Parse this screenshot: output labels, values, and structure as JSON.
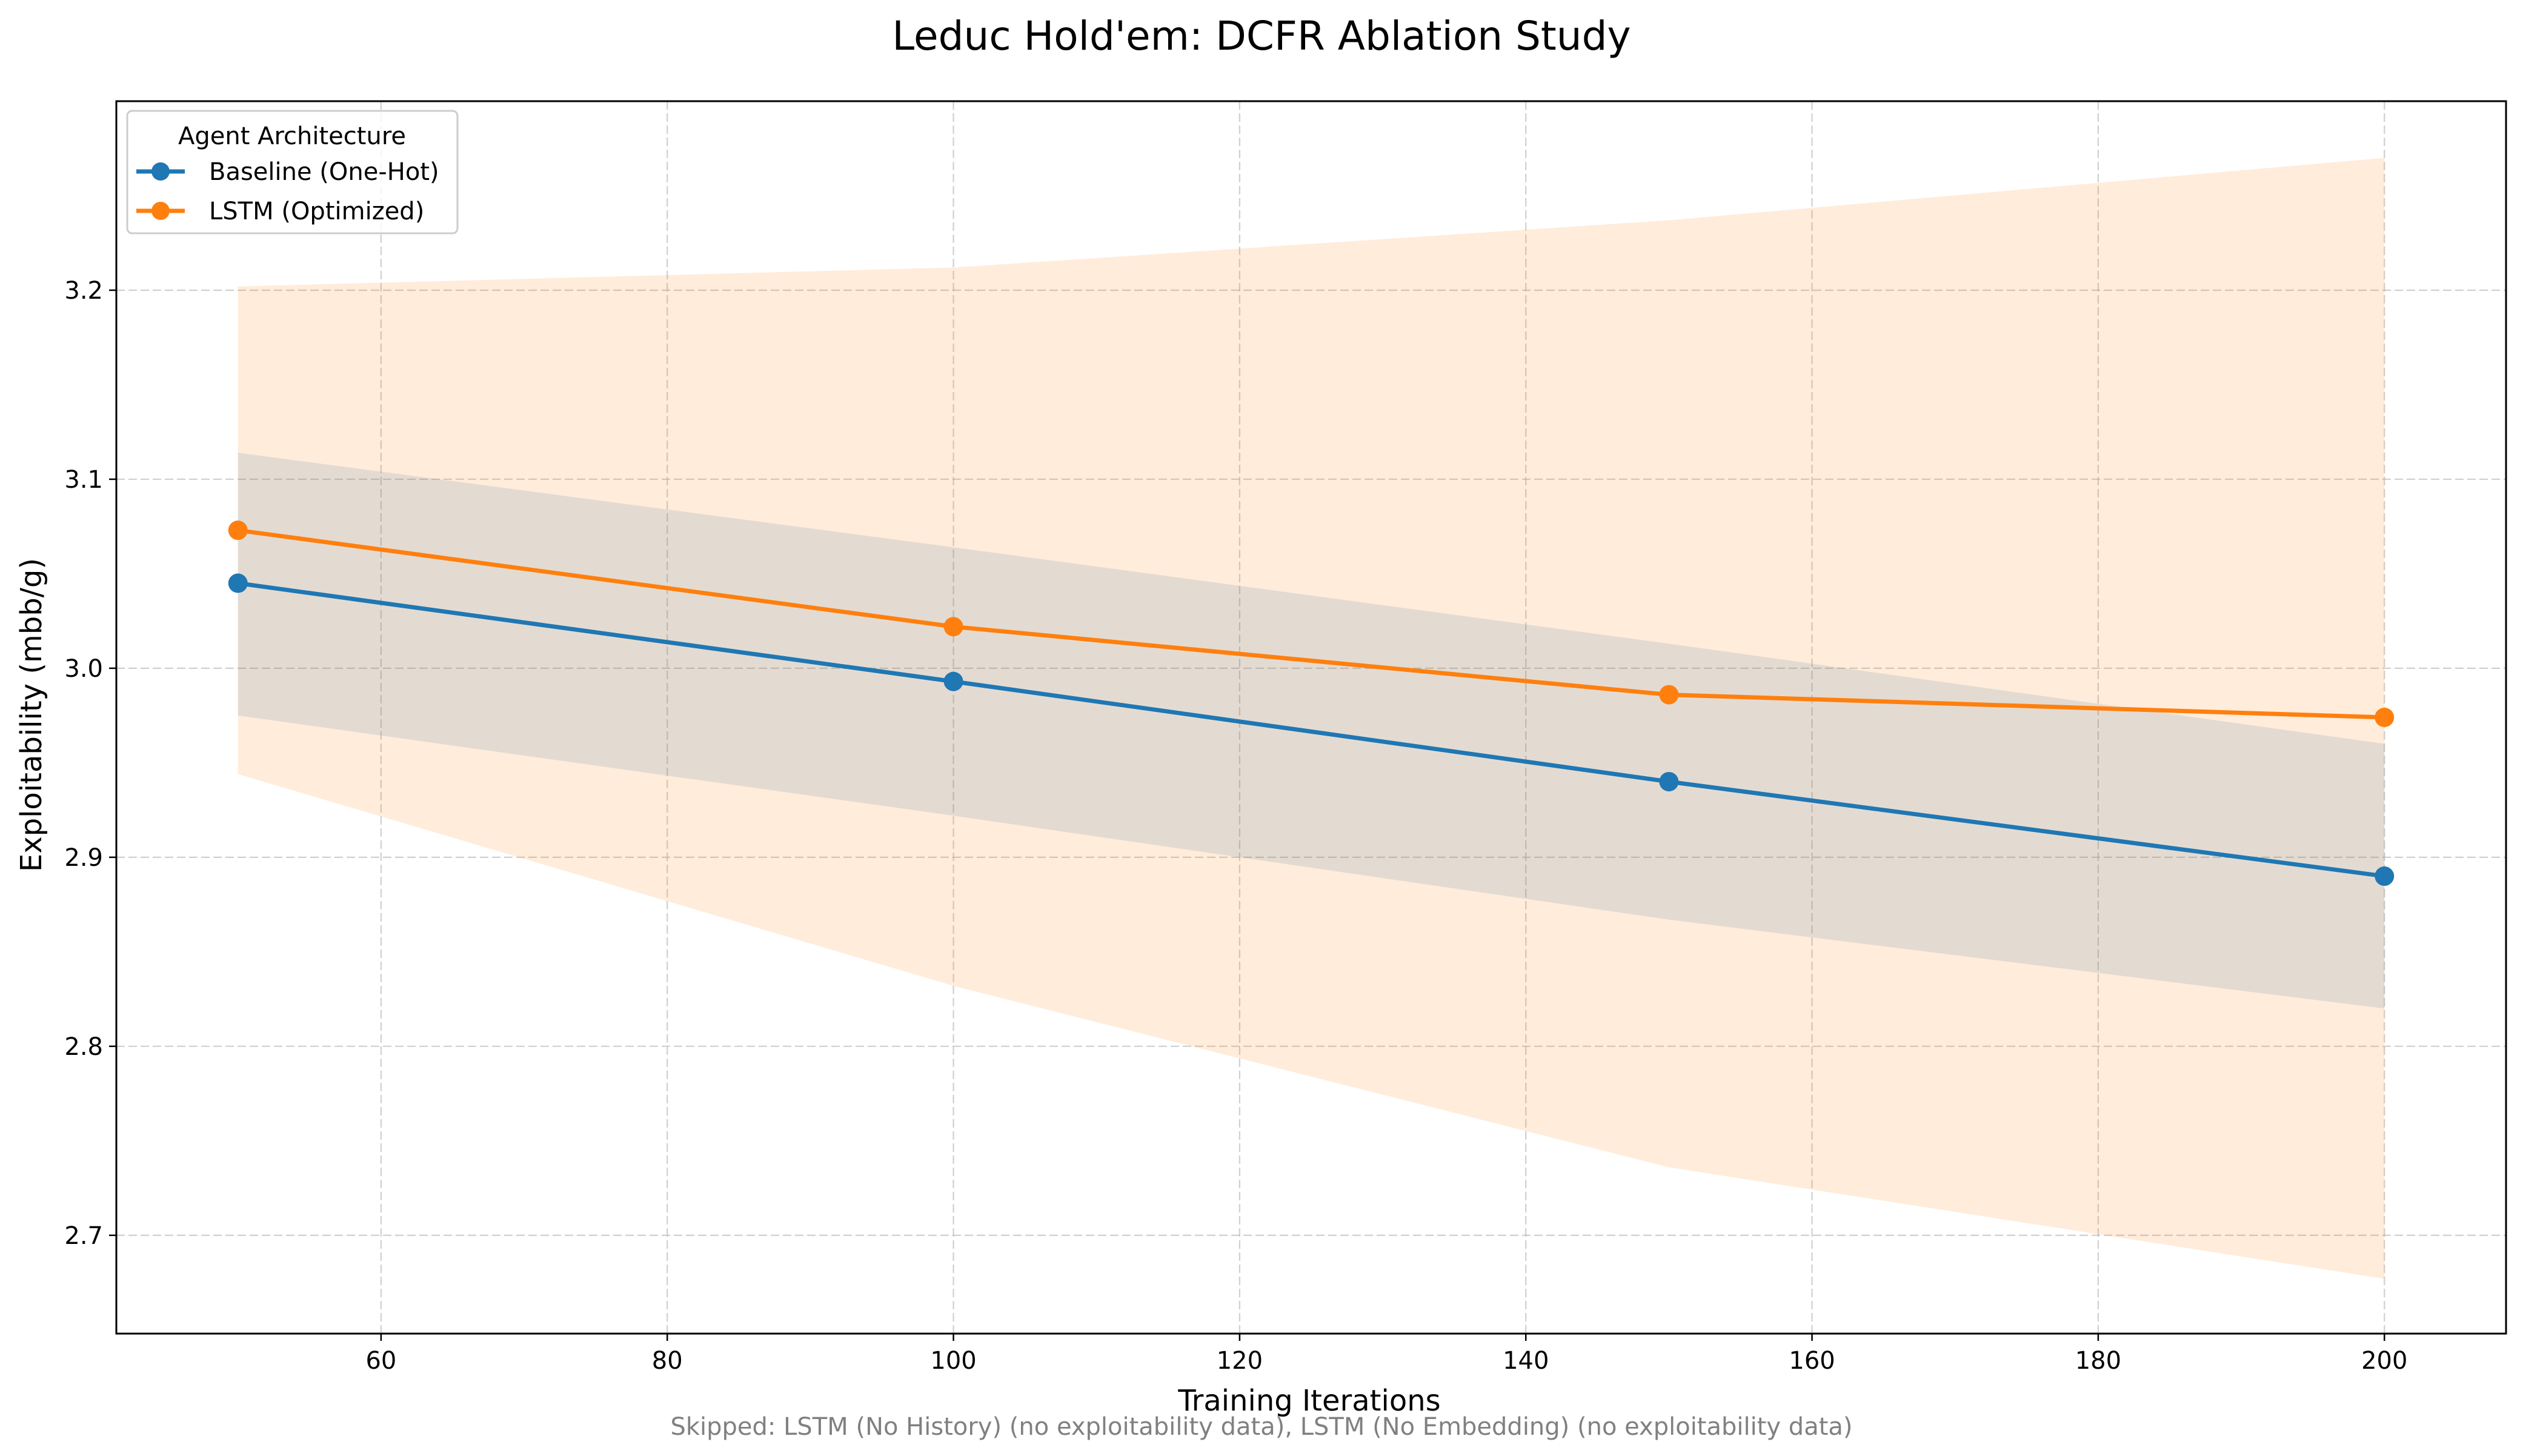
{
  "chart_data": {
    "type": "line",
    "title": "Leduc Hold'em: DCFR Ablation Study",
    "xlabel": "Training Iterations",
    "ylabel": "Exploitability (mbb/g)",
    "footnote": "Skipped: LSTM (No History) (no exploitability data), LSTM (No Embedding) (no exploitability data)",
    "x": [
      50,
      100,
      150,
      200
    ],
    "xlim": [
      41.5,
      208.5
    ],
    "ylim": [
      2.648,
      3.3
    ],
    "xticks": [
      60,
      80,
      100,
      120,
      140,
      160,
      180,
      200
    ],
    "xtick_labels": [
      "60",
      "80",
      "100",
      "120",
      "140",
      "160",
      "180",
      "200"
    ],
    "yticks": [
      2.7,
      2.8,
      2.9,
      3.0,
      3.1,
      3.2
    ],
    "ytick_labels": [
      "2.7",
      "2.8",
      "2.9",
      "3.0",
      "3.1",
      "3.2"
    ],
    "grid": true,
    "legend": {
      "title": "Agent Architecture",
      "placement": "upper-left"
    },
    "series": [
      {
        "name": "Baseline (One-Hot)",
        "color": "#1f77b4",
        "values": [
          3.045,
          2.993,
          2.94,
          2.89
        ],
        "band_lower": [
          2.975,
          2.922,
          2.867,
          2.82
        ],
        "band_upper": [
          3.114,
          3.064,
          3.013,
          2.96
        ]
      },
      {
        "name": "LSTM (Optimized)",
        "color": "#ff7f0e",
        "values": [
          3.073,
          3.022,
          2.986,
          2.974
        ],
        "band_lower": [
          2.944,
          2.832,
          2.736,
          2.677
        ],
        "band_upper": [
          3.202,
          3.212,
          3.237,
          3.27
        ]
      }
    ]
  }
}
